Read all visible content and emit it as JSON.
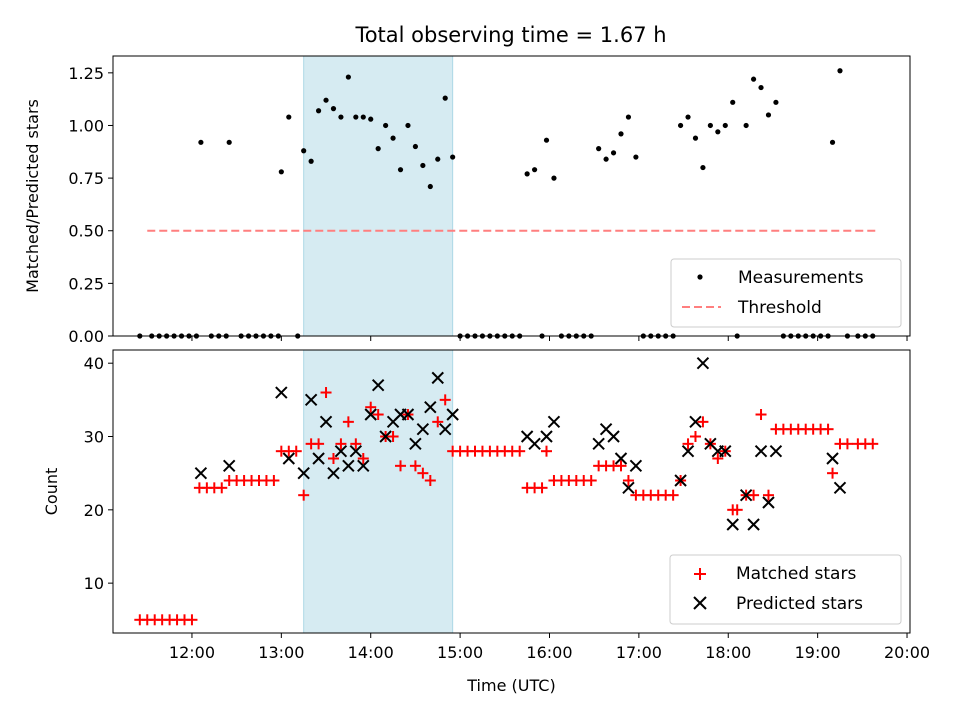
{
  "title": "Total observing time = 1.67 h",
  "colors": {
    "measurement": "#000000",
    "threshold": "#ff7f7f",
    "matched": "#ff0000",
    "predicted": "#000000",
    "highlight": "#add8e6"
  },
  "chart_data": [
    {
      "type": "scatter",
      "ylabel": "Matched/Predicted stars",
      "xlim": [
        "11:07",
        "20:02"
      ],
      "ylim": [
        0,
        1.33
      ],
      "yticks": [
        0.0,
        0.25,
        0.5,
        0.75,
        1.0,
        1.25
      ],
      "ytick_labels": [
        "0.00",
        "0.25",
        "0.50",
        "0.75",
        "1.00",
        "1.25"
      ],
      "highlight_span": {
        "start": "13:15",
        "end": "14:55"
      },
      "threshold": {
        "value": 0.5,
        "x_start": "11:30",
        "x_end": "19:40"
      },
      "legend": {
        "position": "lower-right",
        "entries": [
          "Measurements",
          "Threshold"
        ]
      },
      "series": [
        {
          "name": "Measurements",
          "points": [
            [
              "11:25",
              0
            ],
            [
              "11:33",
              0
            ],
            [
              "11:38",
              0
            ],
            [
              "11:43",
              0
            ],
            [
              "11:48",
              0
            ],
            [
              "11:53",
              0
            ],
            [
              "11:58",
              0
            ],
            [
              "12:03",
              0
            ],
            [
              "12:06",
              0.92
            ],
            [
              "12:13",
              0
            ],
            [
              "12:18",
              0
            ],
            [
              "12:23",
              0
            ],
            [
              "12:25",
              0.92
            ],
            [
              "12:33",
              0
            ],
            [
              "12:38",
              0
            ],
            [
              "12:43",
              0
            ],
            [
              "12:48",
              0
            ],
            [
              "12:53",
              0
            ],
            [
              "12:58",
              0
            ],
            [
              "13:00",
              0.78
            ],
            [
              "13:05",
              1.04
            ],
            [
              "13:11",
              0
            ],
            [
              "13:15",
              0.88
            ],
            [
              "13:20",
              0.83
            ],
            [
              "13:25",
              1.07
            ],
            [
              "13:30",
              1.12
            ],
            [
              "13:35",
              1.08
            ],
            [
              "13:40",
              1.04
            ],
            [
              "13:45",
              1.23
            ],
            [
              "13:50",
              1.04
            ],
            [
              "13:55",
              1.04
            ],
            [
              "14:00",
              1.03
            ],
            [
              "14:05",
              0.89
            ],
            [
              "14:10",
              1.0
            ],
            [
              "14:15",
              0.94
            ],
            [
              "14:20",
              0.79
            ],
            [
              "14:25",
              1.0
            ],
            [
              "14:30",
              0.9
            ],
            [
              "14:35",
              0.81
            ],
            [
              "14:40",
              0.71
            ],
            [
              "14:45",
              0.84
            ],
            [
              "14:50",
              1.13
            ],
            [
              "14:55",
              0.85
            ],
            [
              "15:00",
              0
            ],
            [
              "15:05",
              0
            ],
            [
              "15:10",
              0
            ],
            [
              "15:15",
              0
            ],
            [
              "15:20",
              0
            ],
            [
              "15:25",
              0
            ],
            [
              "15:30",
              0
            ],
            [
              "15:35",
              0
            ],
            [
              "15:40",
              0
            ],
            [
              "15:45",
              0.77
            ],
            [
              "15:50",
              0.79
            ],
            [
              "15:55",
              0
            ],
            [
              "15:58",
              0.93
            ],
            [
              "16:03",
              0.75
            ],
            [
              "16:08",
              0
            ],
            [
              "16:13",
              0
            ],
            [
              "16:18",
              0
            ],
            [
              "16:23",
              0
            ],
            [
              "16:28",
              0
            ],
            [
              "16:33",
              0.89
            ],
            [
              "16:38",
              0.84
            ],
            [
              "16:43",
              0.87
            ],
            [
              "16:48",
              0.96
            ],
            [
              "16:53",
              1.04
            ],
            [
              "16:58",
              0.85
            ],
            [
              "17:03",
              0
            ],
            [
              "17:08",
              0
            ],
            [
              "17:13",
              0
            ],
            [
              "17:18",
              0
            ],
            [
              "17:23",
              0
            ],
            [
              "17:28",
              1.0
            ],
            [
              "17:33",
              1.04
            ],
            [
              "17:38",
              0.94
            ],
            [
              "17:43",
              0.8
            ],
            [
              "17:48",
              1.0
            ],
            [
              "17:53",
              0.97
            ],
            [
              "17:58",
              1.0
            ],
            [
              "18:03",
              1.11
            ],
            [
              "18:06",
              0
            ],
            [
              "18:12",
              1.0
            ],
            [
              "18:17",
              1.22
            ],
            [
              "18:22",
              1.18
            ],
            [
              "18:27",
              1.05
            ],
            [
              "18:32",
              1.11
            ],
            [
              "18:37",
              0
            ],
            [
              "18:42",
              0
            ],
            [
              "18:47",
              0
            ],
            [
              "18:52",
              0
            ],
            [
              "18:57",
              0
            ],
            [
              "19:02",
              0
            ],
            [
              "19:07",
              0
            ],
            [
              "19:10",
              0.92
            ],
            [
              "19:15",
              1.26
            ],
            [
              "19:20",
              0
            ],
            [
              "19:27",
              0
            ],
            [
              "19:32",
              0
            ],
            [
              "19:37",
              0
            ]
          ]
        }
      ]
    },
    {
      "type": "scatter",
      "xlabel": "Time (UTC)",
      "ylabel": "Count",
      "xlim": [
        "11:07",
        "20:02"
      ],
      "ylim": [
        3.2,
        41.8
      ],
      "yticks": [
        10,
        20,
        30,
        40
      ],
      "ytick_labels": [
        "10",
        "20",
        "30",
        "40"
      ],
      "xticks": [
        "12:00",
        "13:00",
        "14:00",
        "15:00",
        "16:00",
        "17:00",
        "18:00",
        "19:00",
        "20:00"
      ],
      "highlight_span": {
        "start": "13:15",
        "end": "14:55"
      },
      "legend": {
        "position": "lower-right",
        "entries": [
          "Matched stars",
          "Predicted stars"
        ]
      },
      "series": [
        {
          "name": "Matched stars",
          "points": [
            [
              "11:25",
              5
            ],
            [
              "11:30",
              5
            ],
            [
              "11:35",
              5
            ],
            [
              "11:40",
              5
            ],
            [
              "11:45",
              5
            ],
            [
              "11:50",
              5
            ],
            [
              "11:55",
              5
            ],
            [
              "12:00",
              5
            ],
            [
              "12:05",
              23
            ],
            [
              "12:10",
              23
            ],
            [
              "12:15",
              23
            ],
            [
              "12:20",
              23
            ],
            [
              "12:25",
              24
            ],
            [
              "12:30",
              24
            ],
            [
              "12:35",
              24
            ],
            [
              "12:40",
              24
            ],
            [
              "12:45",
              24
            ],
            [
              "12:50",
              24
            ],
            [
              "12:55",
              24
            ],
            [
              "13:00",
              28
            ],
            [
              "13:05",
              28
            ],
            [
              "13:10",
              28
            ],
            [
              "13:15",
              22
            ],
            [
              "13:20",
              29
            ],
            [
              "13:25",
              29
            ],
            [
              "13:30",
              36
            ],
            [
              "13:35",
              27
            ],
            [
              "13:40",
              29
            ],
            [
              "13:45",
              32
            ],
            [
              "13:50",
              29
            ],
            [
              "13:55",
              27
            ],
            [
              "14:00",
              34
            ],
            [
              "14:05",
              33
            ],
            [
              "14:10",
              30
            ],
            [
              "14:15",
              30
            ],
            [
              "14:20",
              26
            ],
            [
              "14:25",
              33
            ],
            [
              "14:30",
              26
            ],
            [
              "14:35",
              25
            ],
            [
              "14:40",
              24
            ],
            [
              "14:45",
              32
            ],
            [
              "14:50",
              35
            ],
            [
              "14:55",
              28
            ],
            [
              "15:00",
              28
            ],
            [
              "15:05",
              28
            ],
            [
              "15:10",
              28
            ],
            [
              "15:15",
              28
            ],
            [
              "15:20",
              28
            ],
            [
              "15:25",
              28
            ],
            [
              "15:30",
              28
            ],
            [
              "15:35",
              28
            ],
            [
              "15:40",
              28
            ],
            [
              "15:45",
              23
            ],
            [
              "15:50",
              23
            ],
            [
              "15:55",
              23
            ],
            [
              "15:58",
              28
            ],
            [
              "16:03",
              24
            ],
            [
              "16:08",
              24
            ],
            [
              "16:13",
              24
            ],
            [
              "16:18",
              24
            ],
            [
              "16:23",
              24
            ],
            [
              "16:28",
              24
            ],
            [
              "16:33",
              26
            ],
            [
              "16:38",
              26
            ],
            [
              "16:43",
              26
            ],
            [
              "16:48",
              26
            ],
            [
              "16:53",
              24
            ],
            [
              "16:58",
              22
            ],
            [
              "17:03",
              22
            ],
            [
              "17:08",
              22
            ],
            [
              "17:13",
              22
            ],
            [
              "17:18",
              22
            ],
            [
              "17:23",
              22
            ],
            [
              "17:28",
              24
            ],
            [
              "17:33",
              29
            ],
            [
              "17:38",
              30
            ],
            [
              "17:43",
              32
            ],
            [
              "17:48",
              29
            ],
            [
              "17:53",
              27
            ],
            [
              "17:58",
              28
            ],
            [
              "18:03",
              20
            ],
            [
              "18:06",
              20
            ],
            [
              "18:12",
              22
            ],
            [
              "18:17",
              22
            ],
            [
              "18:22",
              33
            ],
            [
              "18:27",
              22
            ],
            [
              "18:32",
              31
            ],
            [
              "18:37",
              31
            ],
            [
              "18:42",
              31
            ],
            [
              "18:47",
              31
            ],
            [
              "18:52",
              31
            ],
            [
              "18:57",
              31
            ],
            [
              "19:02",
              31
            ],
            [
              "19:07",
              31
            ],
            [
              "19:10",
              25
            ],
            [
              "19:15",
              29
            ],
            [
              "19:20",
              29
            ],
            [
              "19:27",
              29
            ],
            [
              "19:32",
              29
            ],
            [
              "19:37",
              29
            ]
          ]
        },
        {
          "name": "Predicted stars",
          "points": [
            [
              "12:06",
              25
            ],
            [
              "12:25",
              26
            ],
            [
              "13:00",
              36
            ],
            [
              "13:05",
              27
            ],
            [
              "13:15",
              25
            ],
            [
              "13:20",
              35
            ],
            [
              "13:25",
              27
            ],
            [
              "13:30",
              32
            ],
            [
              "13:35",
              25
            ],
            [
              "13:40",
              28
            ],
            [
              "13:45",
              26
            ],
            [
              "13:50",
              28
            ],
            [
              "13:55",
              26
            ],
            [
              "14:00",
              33
            ],
            [
              "14:05",
              37
            ],
            [
              "14:10",
              30
            ],
            [
              "14:15",
              32
            ],
            [
              "14:20",
              33
            ],
            [
              "14:25",
              33
            ],
            [
              "14:30",
              29
            ],
            [
              "14:35",
              31
            ],
            [
              "14:40",
              34
            ],
            [
              "14:45",
              38
            ],
            [
              "14:50",
              31
            ],
            [
              "14:55",
              33
            ],
            [
              "15:45",
              30
            ],
            [
              "15:50",
              29
            ],
            [
              "15:58",
              30
            ],
            [
              "16:03",
              32
            ],
            [
              "16:33",
              29
            ],
            [
              "16:38",
              31
            ],
            [
              "16:43",
              30
            ],
            [
              "16:48",
              27
            ],
            [
              "16:53",
              23
            ],
            [
              "16:58",
              26
            ],
            [
              "17:28",
              24
            ],
            [
              "17:33",
              28
            ],
            [
              "17:38",
              32
            ],
            [
              "17:43",
              40
            ],
            [
              "17:48",
              29
            ],
            [
              "17:53",
              28
            ],
            [
              "17:58",
              28
            ],
            [
              "18:03",
              18
            ],
            [
              "18:12",
              22
            ],
            [
              "18:17",
              18
            ],
            [
              "18:22",
              28
            ],
            [
              "18:27",
              21
            ],
            [
              "18:32",
              28
            ],
            [
              "19:10",
              27
            ],
            [
              "19:15",
              23
            ]
          ]
        }
      ]
    }
  ]
}
